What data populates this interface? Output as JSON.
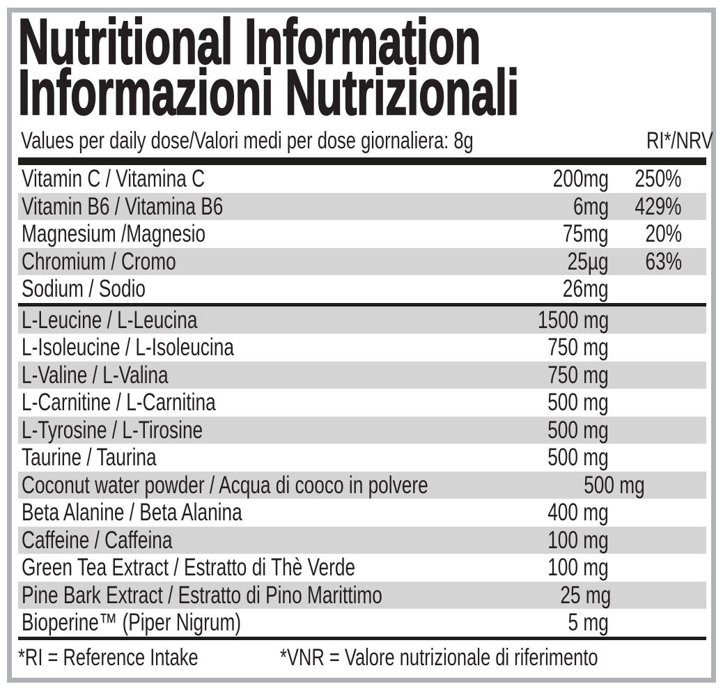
{
  "colors": {
    "text": "#231f20",
    "bar": "#1d1d1b",
    "stripe": "#d4d4d5",
    "frame": "#aeb2b5"
  },
  "title": {
    "line1": "Nutritional Information",
    "line2": "Informazioni Nutrizionali"
  },
  "header": {
    "left": "Values per daily dose/Valori medi per dose giornaliera: 8g",
    "right": "RI*/NRV"
  },
  "sections": [
    {
      "rows": [
        {
          "name": "Vitamin C / Vitamina C",
          "amount": "200mg",
          "pct": "250%"
        },
        {
          "name": "Vitamin B6 / Vitamina B6",
          "amount": "6mg",
          "pct": "429%"
        },
        {
          "name": "Magnesium /Magnesio",
          "amount": "75mg",
          "pct": "20%"
        },
        {
          "name": "Chromium / Cromo",
          "amount": "25µg",
          "pct": "63%"
        },
        {
          "name": "Sodium / Sodio",
          "amount": "26mg",
          "pct": ""
        }
      ]
    },
    {
      "rows": [
        {
          "name": "L-Leucine / L-Leucina",
          "amount": "1500 mg",
          "pct": ""
        },
        {
          "name": "L-Isoleucine / L-Isoleucina",
          "amount": "750 mg",
          "pct": ""
        },
        {
          "name": "L-Valine / L-Valina",
          "amount": "750 mg",
          "pct": ""
        },
        {
          "name": "L-Carnitine / L-Carnitina",
          "amount": "500 mg",
          "pct": ""
        },
        {
          "name": "L-Tyrosine / L-Tirosine",
          "amount": "500 mg",
          "pct": ""
        },
        {
          "name": "Taurine / Taurina",
          "amount": "500 mg",
          "pct": ""
        },
        {
          "name": "Coconut water powder / Acqua di cooco in polvere",
          "amount": "500 mg",
          "pct": ""
        },
        {
          "name": "Beta Alanine / Beta Alanina",
          "amount": "400 mg",
          "pct": ""
        },
        {
          "name": "Caffeine / Caffeina",
          "amount": "100 mg",
          "pct": ""
        },
        {
          "name": "Green Tea Extract / Estratto di Thè Verde",
          "amount": "100 mg",
          "pct": ""
        },
        {
          "name": "Pine Bark Extract / Estratto di Pino Marittimo",
          "amount": "25 mg",
          "pct": ""
        },
        {
          "name": "Bioperine™ (Piper Nigrum)",
          "amount": "5 mg",
          "pct": ""
        }
      ]
    }
  ],
  "footnotes": {
    "left": "*RI = Reference Intake",
    "right": "*VNR = Valore nutrizionale di riferimento"
  }
}
